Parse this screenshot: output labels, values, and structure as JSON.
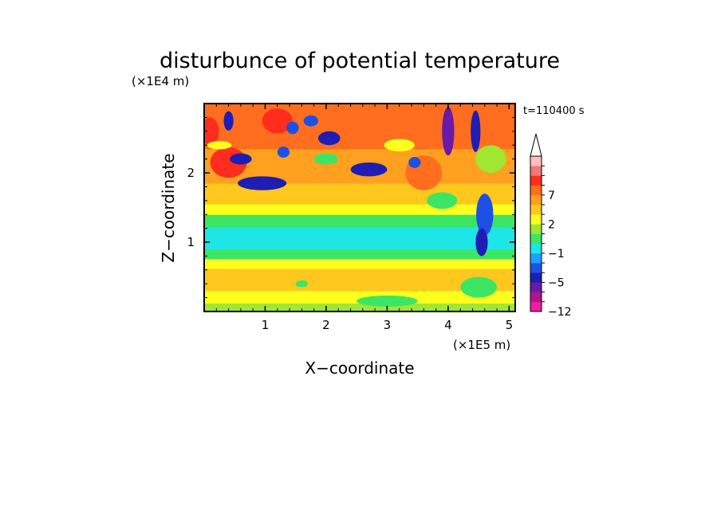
{
  "chart_data": {
    "type": "heatmap",
    "title": "disturbunce of potential temperature",
    "time_label": "t=110400 s",
    "xlabel": "X−coordinate",
    "ylabel": "Z−coordinate",
    "x_unit": "(×1E5 m)",
    "y_unit": "(×1E4 m)",
    "xlim": [
      0,
      5.1
    ],
    "ylim": [
      0,
      3.0
    ],
    "x_ticks": [
      {
        "value": 1,
        "label": "1"
      },
      {
        "value": 2,
        "label": "2"
      },
      {
        "value": 3,
        "label": "3"
      },
      {
        "value": 4,
        "label": "4"
      },
      {
        "value": 5,
        "label": "5"
      }
    ],
    "y_ticks": [
      {
        "value": 1,
        "label": "1"
      },
      {
        "value": 2,
        "label": "2"
      }
    ],
    "colorbar": {
      "extend": "max",
      "colors": [
        "#ee1ea0",
        "#b0158c",
        "#6a1aa8",
        "#1e1eb4",
        "#1e50e6",
        "#1ea0ff",
        "#1ee6e6",
        "#3ce664",
        "#a0e632",
        "#ffff1e",
        "#ffc81e",
        "#ffa01e",
        "#ff6e1e",
        "#ff2d1e",
        "#f07878",
        "#ffbebe"
      ],
      "labels": [
        {
          "boundary": 0,
          "text": "−12"
        },
        {
          "boundary": 3,
          "text": "−5"
        },
        {
          "boundary": 6,
          "text": "−1"
        },
        {
          "boundary": 9,
          "text": "2"
        },
        {
          "boundary": 12,
          "text": "7"
        }
      ]
    },
    "bands": [
      {
        "z_top": 0.12,
        "color": "#a0e632"
      },
      {
        "z_top": 0.3,
        "color": "#ffff1e"
      },
      {
        "z_top": 0.62,
        "color": "#ffc81e"
      },
      {
        "z_top": 0.76,
        "color": "#ffff1e"
      },
      {
        "z_top": 0.9,
        "color": "#3ce664"
      },
      {
        "z_top": 1.22,
        "color": "#1ee6e6"
      },
      {
        "z_top": 1.4,
        "color": "#3ce664"
      },
      {
        "z_top": 1.55,
        "color": "#ffff1e"
      },
      {
        "z_top": 1.85,
        "color": "#ffc81e"
      },
      {
        "z_top": 2.35,
        "color": "#ffa01e"
      },
      {
        "z_top": 3.0,
        "color": "#ff6e1e"
      }
    ],
    "features": [
      {
        "x": 0.4,
        "z": 2.15,
        "rx": 0.3,
        "rz": 0.22,
        "color": "#ff2d1e"
      },
      {
        "x": 0.1,
        "z": 2.6,
        "rx": 0.14,
        "rz": 0.2,
        "color": "#ff2d1e"
      },
      {
        "x": 1.2,
        "z": 2.75,
        "rx": 0.25,
        "rz": 0.18,
        "color": "#ff2d1e"
      },
      {
        "x": 2.9,
        "z": 2.8,
        "rx": 0.45,
        "rz": 0.2,
        "color": "#ff6e1e"
      },
      {
        "x": 3.6,
        "z": 2.0,
        "rx": 0.3,
        "rz": 0.25,
        "color": "#ff6e1e"
      },
      {
        "x": 0.95,
        "z": 1.85,
        "rx": 0.4,
        "rz": 0.1,
        "color": "#1e1eb4"
      },
      {
        "x": 0.6,
        "z": 2.2,
        "rx": 0.18,
        "rz": 0.08,
        "color": "#1e1eb4"
      },
      {
        "x": 0.4,
        "z": 2.75,
        "rx": 0.08,
        "rz": 0.14,
        "color": "#1e1eb4"
      },
      {
        "x": 1.45,
        "z": 2.65,
        "rx": 0.1,
        "rz": 0.09,
        "color": "#1e50e6"
      },
      {
        "x": 1.75,
        "z": 2.75,
        "rx": 0.12,
        "rz": 0.08,
        "color": "#1e50e6"
      },
      {
        "x": 1.3,
        "z": 2.3,
        "rx": 0.1,
        "rz": 0.08,
        "color": "#1e50e6"
      },
      {
        "x": 2.05,
        "z": 2.5,
        "rx": 0.18,
        "rz": 0.1,
        "color": "#1e1eb4"
      },
      {
        "x": 2.7,
        "z": 2.05,
        "rx": 0.3,
        "rz": 0.1,
        "color": "#1e1eb4"
      },
      {
        "x": 3.45,
        "z": 2.15,
        "rx": 0.1,
        "rz": 0.08,
        "color": "#1e50e6"
      },
      {
        "x": 4.0,
        "z": 2.6,
        "rx": 0.1,
        "rz": 0.35,
        "color": "#6a1aa8"
      },
      {
        "x": 4.45,
        "z": 2.6,
        "rx": 0.08,
        "rz": 0.3,
        "color": "#1e1eb4"
      },
      {
        "x": 4.6,
        "z": 1.4,
        "rx": 0.14,
        "rz": 0.3,
        "color": "#1e50e6"
      },
      {
        "x": 4.55,
        "z": 1.0,
        "rx": 0.1,
        "rz": 0.2,
        "color": "#1e1eb4"
      },
      {
        "x": 2.0,
        "z": 2.2,
        "rx": 0.2,
        "rz": 0.08,
        "color": "#3ce664"
      },
      {
        "x": 3.2,
        "z": 2.4,
        "rx": 0.25,
        "rz": 0.09,
        "color": "#ffff1e"
      },
      {
        "x": 4.7,
        "z": 2.2,
        "rx": 0.25,
        "rz": 0.2,
        "color": "#a0e632"
      },
      {
        "x": 3.9,
        "z": 1.6,
        "rx": 0.25,
        "rz": 0.12,
        "color": "#3ce664"
      },
      {
        "x": 0.25,
        "z": 2.4,
        "rx": 0.2,
        "rz": 0.06,
        "color": "#ffff1e"
      },
      {
        "x": 1.6,
        "z": 0.4,
        "rx": 0.1,
        "rz": 0.05,
        "color": "#3ce664"
      },
      {
        "x": 3.0,
        "z": 0.15,
        "rx": 0.5,
        "rz": 0.08,
        "color": "#3ce664"
      },
      {
        "x": 4.5,
        "z": 0.35,
        "rx": 0.3,
        "rz": 0.15,
        "color": "#3ce664"
      }
    ]
  }
}
